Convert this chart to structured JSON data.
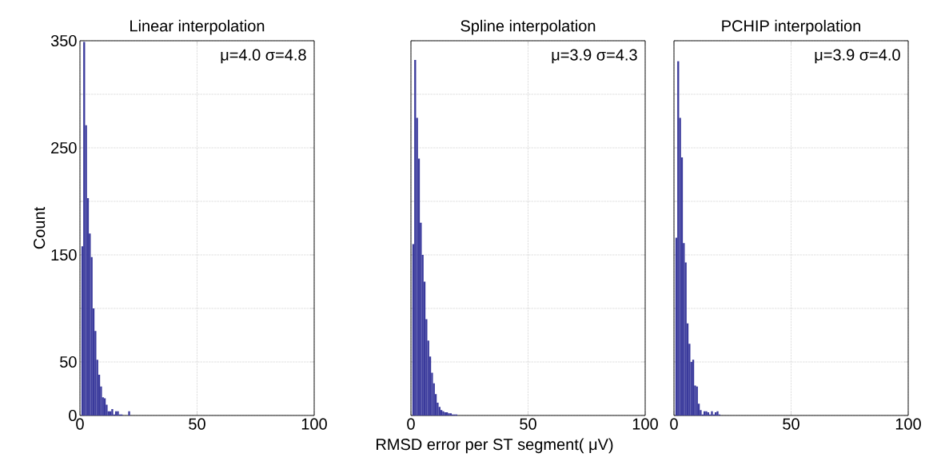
{
  "chart_data": [
    {
      "type": "histogram",
      "title": "Linear interpolation",
      "ylabel": "Count",
      "annotations": [
        "μ=4.0 σ=4.8"
      ],
      "color": "#3a3a9c",
      "bins": [
        0.6,
        1.4,
        2.2,
        3.0,
        3.8,
        4.6,
        5.4,
        6.2,
        7.0,
        7.8,
        8.6,
        9.4,
        10.2,
        11.0,
        11.8,
        12.6,
        13.4,
        14.2,
        15.0,
        15.8,
        16.6,
        17.4,
        18.2,
        19.0,
        19.8,
        20.6,
        21.4
      ],
      "values": [
        158,
        349,
        271,
        203,
        170,
        148,
        100,
        79,
        52,
        38,
        27,
        17,
        16,
        10,
        4,
        4,
        6,
        1,
        4,
        4,
        1,
        1,
        0,
        0,
        0,
        4
      ],
      "xlim": [
        0,
        100
      ],
      "xticks": [
        0,
        50,
        100
      ],
      "ylim": [
        0,
        350
      ],
      "yticks": [
        0,
        50,
        {
          "value": 100,
          "label": null
        },
        150,
        {
          "value": 200,
          "label": null
        },
        250,
        {
          "value": 300,
          "label": null
        },
        350
      ],
      "grid": true
    },
    {
      "type": "histogram",
      "title": "Spline interpolation",
      "xlabel": "RMSD error per ST segment( μV)",
      "annotations": [
        "μ=3.9 σ=4.3"
      ],
      "color": "#3a3a9c",
      "bins": [
        0.6,
        1.4,
        2.2,
        3.0,
        3.8,
        4.6,
        5.4,
        6.2,
        7.0,
        7.8,
        8.6,
        9.4,
        10.2,
        11.0,
        11.8,
        12.6,
        13.4,
        14.2,
        15.0,
        15.8,
        16.6,
        17.4,
        18.2,
        19.0,
        19.8
      ],
      "values": [
        160,
        332,
        278,
        240,
        180,
        150,
        125,
        90,
        70,
        55,
        40,
        30,
        20,
        12,
        8,
        5,
        4,
        3,
        3,
        2,
        2,
        1,
        1,
        1
      ],
      "xlim": [
        0,
        100
      ],
      "xticks": [
        0,
        50,
        100
      ],
      "ylim": [
        0,
        350
      ],
      "yticks": [
        0,
        50,
        {
          "value": 100,
          "label": null
        },
        150,
        {
          "value": 200,
          "label": null
        },
        250,
        {
          "value": 300,
          "label": null
        },
        350
      ],
      "grid": true,
      "tick_labels": "x"
    },
    {
      "type": "histogram",
      "title": "PCHIP interpolation",
      "annotations": [
        "μ=3.9 σ=4.0"
      ],
      "color": "#3a3a9c",
      "bins": [
        0.6,
        1.4,
        2.2,
        3.0,
        3.8,
        4.6,
        5.4,
        6.2,
        7.0,
        7.8,
        8.6,
        9.4,
        10.2,
        11.0,
        11.8,
        12.6,
        13.4,
        14.2,
        15.0,
        15.8,
        16.6,
        17.4,
        18.2,
        19.0,
        19.8
      ],
      "values": [
        166,
        331,
        278,
        241,
        161,
        143,
        86,
        67,
        50,
        52,
        28,
        27,
        11,
        5,
        1,
        4,
        4,
        3,
        1,
        4,
        1,
        3,
        4,
        1
      ],
      "xlim": [
        0,
        100
      ],
      "xticks": [
        0,
        50,
        100
      ],
      "ylim": [
        0,
        350
      ],
      "yticks": [
        0,
        50,
        {
          "value": 100,
          "label": null
        },
        150,
        {
          "value": 200,
          "label": null
        },
        250,
        {
          "value": 300,
          "label": null
        },
        350
      ],
      "grid": true,
      "tick_labels": "x"
    }
  ]
}
